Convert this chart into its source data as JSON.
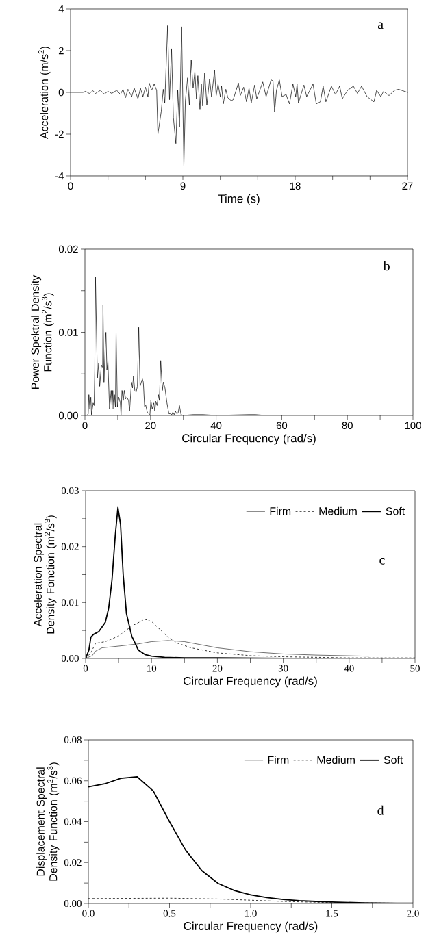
{
  "chart_data": [
    {
      "type": "line",
      "xlabel": "Time (s)",
      "ylabel": "Acceleration (m/s$^{2}$)",
      "annotations": [
        "a"
      ],
      "color": "#000000",
      "xlim": [
        0,
        27
      ],
      "ylim": [
        -4,
        4
      ],
      "xticks": [
        0,
        {
          "value": 3,
          "label": null
        },
        {
          "value": 6,
          "label": null
        },
        9,
        {
          "value": 12,
          "label": null
        },
        {
          "value": 15,
          "label": null
        },
        18,
        {
          "value": 21,
          "label": null
        },
        {
          "value": 24,
          "label": null
        },
        27
      ],
      "yticks": [
        -4,
        -2,
        0,
        2,
        4
      ],
      "x": [
        0,
        1,
        1.2,
        1.5,
        1.8,
        2.0,
        2.4,
        2.7,
        3.0,
        3.3,
        3.7,
        4.0,
        4.2,
        4.4,
        4.6,
        4.9,
        5.1,
        5.4,
        5.6,
        5.8,
        6.0,
        6.2,
        6.3,
        6.5,
        6.7,
        6.9,
        7.0,
        7.27,
        7.43,
        7.55,
        7.78,
        7.93,
        8.09,
        8.24,
        8.44,
        8.59,
        8.73,
        8.9,
        9.08,
        9.2,
        9.38,
        9.52,
        9.67,
        9.82,
        9.96,
        10.09,
        10.2,
        10.37,
        10.48,
        10.59,
        10.75,
        10.92,
        11.14,
        11.3,
        11.54,
        11.67,
        11.82,
        12.0,
        12.1,
        12.24,
        12.44,
        12.6,
        12.88,
        13.03,
        13.45,
        13.6,
        13.87,
        14.1,
        14.3,
        14.48,
        14.75,
        14.92,
        15.4,
        15.67,
        16.07,
        16.22,
        16.35,
        16.5,
        16.73,
        16.95,
        17.27,
        17.54,
        17.82,
        18.04,
        18.15,
        18.26,
        18.7,
        18.92,
        19.43,
        19.69,
        20.02,
        20.24,
        20.46,
        20.9,
        21.23,
        21.56,
        21.78,
        22.2,
        22.66,
        22.99,
        23.32,
        23.76,
        24.31,
        24.53,
        24.86,
        25.08,
        25.52,
        25.96,
        26.29,
        27
      ],
      "values": [
        0,
        0,
        0.05,
        -0.05,
        0.08,
        -0.05,
        0.1,
        -0.08,
        0.05,
        -0.05,
        0.1,
        -0.1,
        0.15,
        -0.25,
        0.15,
        -0.2,
        0.2,
        -0.3,
        0.2,
        -0.2,
        0.25,
        -0.2,
        0.45,
        0.1,
        0.4,
        0.1,
        -2.0,
        -0.9,
        0.15,
        -0.5,
        3.2,
        -0.35,
        2.1,
        -1.2,
        -2.45,
        0.1,
        -1.65,
        3.15,
        -3.5,
        -0.4,
        0.7,
        -0.6,
        1.55,
        0.2,
        1.0,
        -0.3,
        0.8,
        -0.8,
        0.4,
        -0.65,
        0.95,
        -0.6,
        0.65,
        -0.2,
        1.05,
        -0.15,
        0.4,
        -0.2,
        0.3,
        -0.55,
        0.15,
        -0.25,
        -0.4,
        -0.35,
        0.45,
        -0.15,
        0.25,
        -0.45,
        0.2,
        -0.5,
        0.35,
        -0.3,
        0.5,
        -0.2,
        0.6,
        0.55,
        -0.95,
        0.1,
        0.6,
        -0.2,
        -0.1,
        -0.55,
        0.4,
        -0.2,
        0.4,
        -0.5,
        0.35,
        -0.2,
        0.4,
        -0.55,
        -0.45,
        0.3,
        -0.45,
        0.3,
        -0.1,
        0.3,
        -0.3,
        0.1,
        0.3,
        -0.05,
        0.3,
        -0.2,
        -0.45,
        0.1,
        -0.2,
        0.05,
        -0.15,
        0.1,
        0.15,
        0
      ]
    },
    {
      "type": "line",
      "xlabel": "Circular Frequency (rad/s)",
      "ylabel": "Power Spektral Density Function (m$^{2}$/s$^{3}$)",
      "annotations": [
        "b"
      ],
      "color": "#000000",
      "xlim": [
        0,
        100
      ],
      "ylim": [
        0,
        0.02
      ],
      "xticks": [
        0,
        {
          "value": 10,
          "label": null
        },
        20,
        {
          "value": 30,
          "label": null
        },
        40,
        {
          "value": 50,
          "label": null
        },
        60,
        {
          "value": 70,
          "label": null
        },
        80,
        {
          "value": 90,
          "label": null
        },
        100
      ],
      "yticks": [
        {
          "value": 0,
          "label": "0.00"
        },
        {
          "value": 0.005,
          "label": null
        },
        0.01,
        {
          "value": 0.015,
          "label": null
        },
        0.02
      ],
      "x": [
        0.6,
        1.0,
        1.2,
        1.5,
        1.8,
        2.0,
        2.5,
        2.8,
        3.0,
        3.2,
        3.8,
        4.2,
        4.5,
        5.0,
        5.4,
        5.5,
        5.8,
        6.2,
        6.4,
        6.7,
        7.0,
        7.5,
        8.0,
        8.3,
        8.5,
        8.8,
        9.0,
        9.3,
        9.5,
        9.9,
        10.3,
        10.8,
        11.0,
        11.3,
        11.7,
        12.0,
        12.4,
        12.8,
        13.3,
        13.6,
        14.2,
        14.5,
        14.8,
        15.2,
        15.6,
        16.0,
        16.4,
        16.8,
        17.5,
        17.8,
        18.2,
        18.5,
        19.0,
        19.5,
        19.8,
        20.1,
        20.5,
        21.0,
        21.3,
        21.6,
        22.0,
        22.4,
        22.7,
        23.1,
        23.6,
        23.9,
        24.4,
        25.0,
        25.6,
        26.0,
        26.5,
        26.8,
        27.2,
        27.6,
        28.0,
        28.4,
        28.8,
        29.3,
        30,
        33,
        36,
        40,
        50,
        52,
        55,
        100
      ],
      "values": [
        0,
        0.0002,
        0.0025,
        0.0008,
        0.0022,
        0.0001,
        0.0015,
        0.0012,
        0.0055,
        0.0167,
        0.0045,
        0.0063,
        0.0035,
        0.006,
        0.0058,
        0.0133,
        0.004,
        0.0085,
        0.01,
        0.0055,
        0.0065,
        0.0008,
        0.003,
        0.0008,
        0.003,
        0.0008,
        0.0025,
        0.001,
        0.01,
        0.001,
        0.0022,
        0.0015,
        0,
        0.003,
        0.0018,
        0.003,
        0.002,
        0.0022,
        0.0018,
        0.0005,
        0.004,
        0.0033,
        0.0047,
        0.003,
        0.0028,
        0.0035,
        0.0106,
        0.0035,
        0.0044,
        0.004,
        0.001,
        0.0013,
        0.0004,
        0.0002,
        0,
        0.0018,
        0.0008,
        0.0015,
        0.0005,
        0.0017,
        0.0012,
        0.0025,
        0.0018,
        0.0066,
        0.003,
        0.004,
        0.0033,
        0.0015,
        0.0002,
        0.0002,
        0.0001,
        0.0004,
        0.0001,
        0.0005,
        0.0002,
        0.0003,
        0.0012,
        0.0001,
        0,
        0.0001,
        0.0001,
        0,
        0.0001,
        0.0001,
        0,
        0
      ]
    },
    {
      "type": "line",
      "xlabel": "Circular Frequency (rad/s)",
      "ylabel": "Acceleration Spectral Density Fonction (m$^{2}$/s$^{3}$)",
      "annotations": [
        "c"
      ],
      "legend": "top right",
      "xlim": [
        0,
        50
      ],
      "ylim": [
        0,
        0.03
      ],
      "xticks": [
        0,
        {
          "value": 5,
          "label": null
        },
        10,
        {
          "value": 15,
          "label": null
        },
        20,
        {
          "value": 25,
          "label": null
        },
        30,
        {
          "value": 35,
          "label": null
        },
        40,
        {
          "value": 45,
          "label": null
        },
        50
      ],
      "yticks": [
        {
          "value": 0,
          "label": "0.00"
        },
        {
          "value": 0.005,
          "label": null
        },
        0.01,
        {
          "value": 0.015,
          "label": null
        },
        0.02,
        {
          "value": 0.025,
          "label": null
        },
        0.03
      ],
      "series": [
        {
          "name": "Firm",
          "color": "#303030",
          "line_style": "solid",
          "x": [
            0,
            1,
            1.5,
            2.5,
            5,
            8,
            10,
            12.5,
            15,
            20,
            25,
            30,
            35,
            43
          ],
          "values": [
            0,
            0.0005,
            0.0013,
            0.0019,
            0.0022,
            0.0026,
            0.003,
            0.0032,
            0.003,
            0.0019,
            0.0012,
            0.0008,
            0.0006,
            0.0004
          ]
        },
        {
          "name": "Medium",
          "color": "#000000",
          "line_style": "dashed",
          "x": [
            0,
            0.8,
            1.5,
            3,
            5,
            7,
            9,
            10,
            11,
            12.5,
            14,
            16,
            20,
            25,
            30,
            40,
            50
          ],
          "values": [
            0,
            0.001,
            0.0027,
            0.003,
            0.004,
            0.0058,
            0.007,
            0.0066,
            0.0055,
            0.0038,
            0.0027,
            0.0019,
            0.001,
            0.0005,
            0.0003,
            0.0001,
            0.0001
          ]
        },
        {
          "name": "Soft",
          "color": "#000000",
          "line_style": "solid",
          "x": [
            0,
            0.5,
            0.8,
            1.2,
            2,
            3,
            3.5,
            4,
            4.5,
            4.9,
            5.3,
            5.7,
            6.2,
            7,
            8,
            9,
            10,
            12,
            15,
            20,
            30,
            50
          ],
          "values": [
            0,
            0.0015,
            0.0038,
            0.0043,
            0.0048,
            0.0065,
            0.009,
            0.014,
            0.022,
            0.027,
            0.024,
            0.015,
            0.008,
            0.004,
            0.0015,
            0.0007,
            0.0004,
            0.0002,
            0.0001,
            0.0001,
            0,
            0
          ]
        }
      ]
    },
    {
      "type": "line",
      "xlabel": "Circular Frequency (rad/s)",
      "ylabel": "Displacement Spectral Density Function (m$^{2}$/s$^{3}$)",
      "annotations": [
        "d"
      ],
      "legend": "top right",
      "xlim": [
        0,
        2
      ],
      "ylim": [
        0,
        0.08
      ],
      "xticks": [
        {
          "value": 0,
          "label": "0.0"
        },
        {
          "value": 0.25,
          "label": null
        },
        0.5,
        {
          "value": 0.75,
          "label": null
        },
        {
          "value": 1,
          "label": "1.0"
        },
        {
          "value": 1.25,
          "label": null
        },
        1.5,
        {
          "value": 1.75,
          "label": null
        },
        {
          "value": 2,
          "label": "2.0"
        }
      ],
      "yticks": [
        {
          "value": 0,
          "label": "0.00"
        },
        {
          "value": 0.01,
          "label": null
        },
        0.02,
        {
          "value": 0.03,
          "label": null
        },
        0.04,
        {
          "value": 0.05,
          "label": null
        },
        0.06,
        {
          "value": 0.07,
          "label": null
        },
        0.08
      ],
      "series": [
        {
          "name": "Firm",
          "color": "#303030",
          "line_style": "solid"
        },
        {
          "name": "Medium",
          "color": "#000000",
          "line_style": "dashed",
          "x": [
            0,
            0.5,
            0.8,
            1.0,
            1.2,
            1.5,
            2.0
          ],
          "values": [
            0.0024,
            0.0026,
            0.0022,
            0.0016,
            0.001,
            0.0004,
            0.0001
          ]
        },
        {
          "name": "Soft",
          "color": "#000000",
          "line_style": "solid",
          "x": [
            0,
            0.1,
            0.2,
            0.3,
            0.4,
            0.5,
            0.6,
            0.7,
            0.8,
            0.9,
            1.0,
            1.1,
            1.2,
            1.3,
            1.4,
            1.5,
            1.6,
            1.7,
            1.8,
            1.9,
            2.0
          ],
          "values": [
            0.057,
            0.0585,
            0.0612,
            0.062,
            0.055,
            0.04,
            0.026,
            0.016,
            0.0098,
            0.0063,
            0.0042,
            0.0029,
            0.002,
            0.0014,
            0.001,
            0.0007,
            0.0005,
            0.0003,
            0.0002,
            0.0001,
            0.0001
          ]
        }
      ]
    }
  ]
}
